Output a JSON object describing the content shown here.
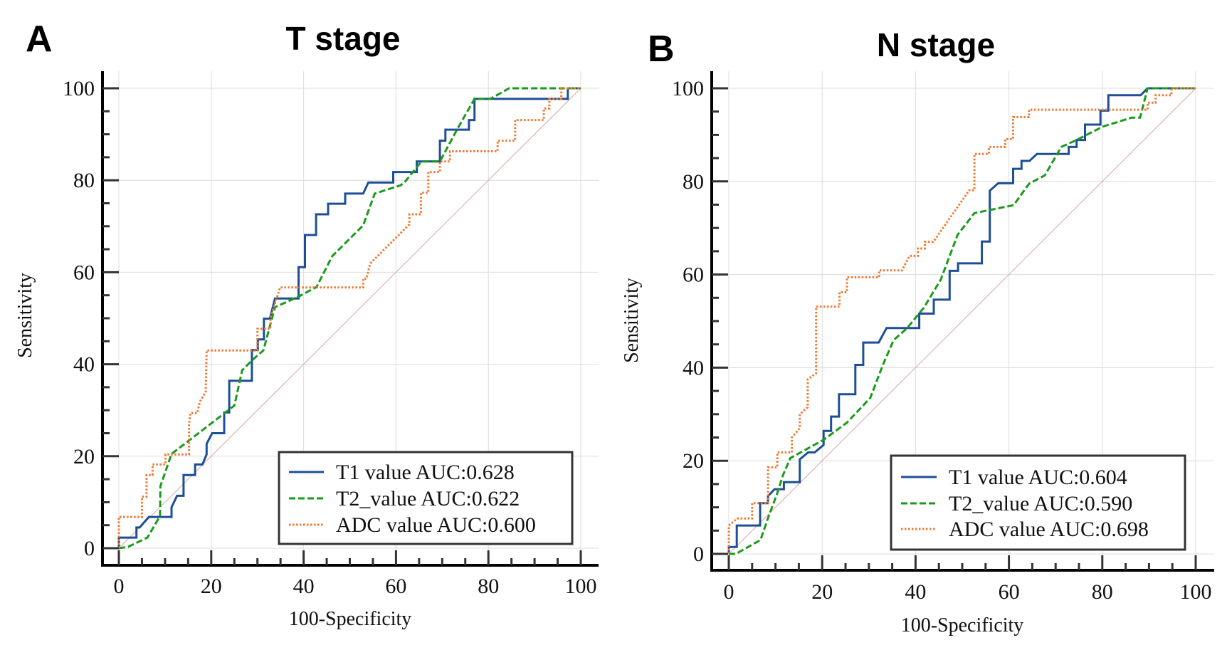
{
  "chart_data": [
    {
      "type": "line",
      "panel_letter": "A",
      "title": "T stage",
      "xlabel": "100-Specificity",
      "ylabel": "Sensitivity",
      "xlim": [
        0,
        100
      ],
      "ylim": [
        0,
        100
      ],
      "xticks": [
        0,
        20,
        40,
        60,
        80,
        100
      ],
      "yticks": [
        0,
        20,
        40,
        60,
        80,
        100
      ],
      "grid": true,
      "legend_position": "bottom-right",
      "reference_line": [
        [
          0,
          0
        ],
        [
          100,
          100
        ]
      ],
      "series": [
        {
          "name": "T1 value AUC:0.628",
          "color": "#1d4f96",
          "style": "solid",
          "points": [
            [
              0,
              0
            ],
            [
              0,
              2.3
            ],
            [
              3.8,
              2.3
            ],
            [
              3.8,
              4.5
            ],
            [
              4.5,
              4.5
            ],
            [
              6.5,
              6.8
            ],
            [
              11.4,
              6.8
            ],
            [
              11.4,
              8.9
            ],
            [
              12.6,
              11.4
            ],
            [
              14,
              11.4
            ],
            [
              14,
              15.9
            ],
            [
              16.5,
              15.9
            ],
            [
              16.5,
              18.2
            ],
            [
              18.1,
              18.2
            ],
            [
              19,
              20.4
            ],
            [
              19,
              22.7
            ],
            [
              20.2,
              25
            ],
            [
              22.8,
              25
            ],
            [
              22.8,
              29.5
            ],
            [
              23.9,
              29.5
            ],
            [
              23.9,
              36.4
            ],
            [
              28.8,
              36.4
            ],
            [
              28.8,
              43.1
            ],
            [
              30.1,
              43.1
            ],
            [
              30.1,
              45.4
            ],
            [
              31.4,
              45.4
            ],
            [
              31.4,
              49.9
            ],
            [
              32.7,
              49.9
            ],
            [
              33.8,
              54.3
            ],
            [
              38.9,
              54.3
            ],
            [
              38.9,
              61.1
            ],
            [
              40.3,
              61.1
            ],
            [
              40.3,
              68.1
            ],
            [
              42.7,
              68.1
            ],
            [
              42.7,
              72.6
            ],
            [
              45.3,
              72.6
            ],
            [
              45.3,
              74.9
            ],
            [
              49,
              74.9
            ],
            [
              49,
              77.1
            ],
            [
              52.9,
              77.1
            ],
            [
              54,
              79.5
            ],
            [
              59.4,
              79.5
            ],
            [
              59.4,
              81.8
            ],
            [
              64.5,
              81.8
            ],
            [
              64.5,
              84.1
            ],
            [
              69.5,
              84.1
            ],
            [
              69.5,
              88.6
            ],
            [
              70.7,
              88.6
            ],
            [
              70.7,
              91
            ],
            [
              75.8,
              91
            ],
            [
              75.8,
              93.1
            ],
            [
              77,
              93.1
            ],
            [
              77,
              97.7
            ],
            [
              97.2,
              97.7
            ],
            [
              97.2,
              100
            ],
            [
              100,
              100
            ]
          ]
        },
        {
          "name": "T2_value AUC:0.622",
          "color": "#1a9a1a",
          "style": "dashed",
          "points": [
            [
              0,
              0
            ],
            [
              2,
              0.3
            ],
            [
              6.2,
              2.3
            ],
            [
              8.9,
              7
            ],
            [
              9,
              13.5
            ],
            [
              11.4,
              20.5
            ],
            [
              25,
              31
            ],
            [
              26.7,
              38.7
            ],
            [
              29,
              41
            ],
            [
              31.3,
              43
            ],
            [
              33.8,
              52.4
            ],
            [
              38.9,
              54.7
            ],
            [
              42.8,
              56.8
            ],
            [
              46.2,
              63.5
            ],
            [
              52.9,
              70.2
            ],
            [
              55.4,
              77.1
            ],
            [
              61,
              78.9
            ],
            [
              61.9,
              79.6
            ],
            [
              65.5,
              84.1
            ],
            [
              69.5,
              84.1
            ],
            [
              73.2,
              91
            ],
            [
              77,
              97.7
            ],
            [
              80.4,
              97.7
            ],
            [
              84.5,
              100
            ],
            [
              100,
              100
            ]
          ]
        },
        {
          "name": "ADC value AUC:0.600",
          "color": "#ee7a33",
          "style": "dotted",
          "points": [
            [
              0,
              0
            ],
            [
              0,
              6.8
            ],
            [
              5,
              6.8
            ],
            [
              5,
              11.2
            ],
            [
              6,
              11.2
            ],
            [
              6,
              15.9
            ],
            [
              7.3,
              15.9
            ],
            [
              7.3,
              18.2
            ],
            [
              10.1,
              18.2
            ],
            [
              10.1,
              20.4
            ],
            [
              15.2,
              20.4
            ],
            [
              15.2,
              27
            ],
            [
              15.5,
              29.4
            ],
            [
              17,
              29.4
            ],
            [
              17.5,
              31.8
            ],
            [
              18.8,
              34
            ],
            [
              19,
              43
            ],
            [
              30,
              43
            ],
            [
              30,
              47.7
            ],
            [
              32.8,
              47.7
            ],
            [
              32.8,
              50
            ],
            [
              34.9,
              56.7
            ],
            [
              52.9,
              56.7
            ],
            [
              52.9,
              58.6
            ],
            [
              53.6,
              58.6
            ],
            [
              54.4,
              61.9
            ],
            [
              62.9,
              70.4
            ],
            [
              62.9,
              72.6
            ],
            [
              65.4,
              72.6
            ],
            [
              65.4,
              77.3
            ],
            [
              67,
              77.3
            ],
            [
              67,
              81.8
            ],
            [
              69.5,
              81.8
            ],
            [
              69.5,
              84.1
            ],
            [
              71.7,
              84.1
            ],
            [
              71.7,
              86.3
            ],
            [
              82,
              86.3
            ],
            [
              82,
              88.6
            ],
            [
              85.8,
              88.6
            ],
            [
              85.8,
              93.1
            ],
            [
              92,
              93.1
            ],
            [
              92,
              95.6
            ],
            [
              93.2,
              95.6
            ],
            [
              93.2,
              97.7
            ],
            [
              95.8,
              97.7
            ],
            [
              95.8,
              100
            ],
            [
              100,
              100
            ]
          ]
        }
      ]
    },
    {
      "type": "line",
      "panel_letter": "B",
      "title": "N stage",
      "xlabel": "100-Specificity",
      "ylabel": "Sensitivity",
      "xlim": [
        0,
        100
      ],
      "ylim": [
        0,
        100
      ],
      "xticks": [
        0,
        20,
        40,
        60,
        80,
        100
      ],
      "yticks": [
        0,
        20,
        40,
        60,
        80,
        100
      ],
      "grid": true,
      "legend_position": "bottom-right",
      "reference_line": [
        [
          0,
          0
        ],
        [
          100,
          100
        ]
      ],
      "series": [
        {
          "name": "T1 value AUC:0.604",
          "color": "#1d4f96",
          "style": "solid",
          "points": [
            [
              0,
              0
            ],
            [
              0,
              1.5
            ],
            [
              1.7,
              1.5
            ],
            [
              1.7,
              6.1
            ],
            [
              6.7,
              6.1
            ],
            [
              6.7,
              10.9
            ],
            [
              8.4,
              10.9
            ],
            [
              8.4,
              12.4
            ],
            [
              9.8,
              13.9
            ],
            [
              11.8,
              13.9
            ],
            [
              11.8,
              15.4
            ],
            [
              15.2,
              15.4
            ],
            [
              15.2,
              20.3
            ],
            [
              17,
              21.8
            ],
            [
              18.4,
              21.8
            ],
            [
              20.3,
              23.4
            ],
            [
              20.3,
              26.4
            ],
            [
              21.9,
              26.4
            ],
            [
              21.9,
              29.5
            ],
            [
              23.6,
              29.5
            ],
            [
              23.6,
              34.3
            ],
            [
              27.1,
              34.3
            ],
            [
              27.1,
              40.6
            ],
            [
              28.8,
              40.6
            ],
            [
              28.8,
              45.4
            ],
            [
              32.1,
              45.4
            ],
            [
              33.8,
              48.5
            ],
            [
              40.8,
              48.5
            ],
            [
              40.8,
              51.6
            ],
            [
              43.9,
              51.6
            ],
            [
              43.9,
              54.6
            ],
            [
              47.3,
              54.6
            ],
            [
              47.3,
              60.8
            ],
            [
              49.1,
              60.8
            ],
            [
              49.1,
              62.4
            ],
            [
              54.2,
              62.4
            ],
            [
              54.2,
              67.1
            ],
            [
              55.9,
              67.1
            ],
            [
              55.9,
              78
            ],
            [
              57.7,
              79.6
            ],
            [
              60.9,
              79.6
            ],
            [
              60.9,
              82.7
            ],
            [
              62.7,
              82.7
            ],
            [
              62.7,
              84.4
            ],
            [
              64.4,
              84.4
            ],
            [
              66,
              85.9
            ],
            [
              72.8,
              85.9
            ],
            [
              72.8,
              87.4
            ],
            [
              74.5,
              87.4
            ],
            [
              74.5,
              88.9
            ],
            [
              76.3,
              88.9
            ],
            [
              76.3,
              92.2
            ],
            [
              79.6,
              92.2
            ],
            [
              79.6,
              95.2
            ],
            [
              81.3,
              95.2
            ],
            [
              81.3,
              98.5
            ],
            [
              88.2,
              98.5
            ],
            [
              89.7,
              100
            ],
            [
              100,
              100
            ]
          ]
        },
        {
          "name": "T2_value AUC:0.590",
          "color": "#1a9a1a",
          "style": "dashed",
          "points": [
            [
              0,
              0
            ],
            [
              1.5,
              0
            ],
            [
              6.8,
              3
            ],
            [
              8.5,
              8
            ],
            [
              10.3,
              12.8
            ],
            [
              11.6,
              16.9
            ],
            [
              13.2,
              20.6
            ],
            [
              20.3,
              24.5
            ],
            [
              25.3,
              28.2
            ],
            [
              30.3,
              33.5
            ],
            [
              33,
              40.6
            ],
            [
              35.3,
              45.9
            ],
            [
              38.2,
              48.5
            ],
            [
              41.8,
              52.9
            ],
            [
              45.4,
              58.9
            ],
            [
              49,
              68.5
            ],
            [
              52.6,
              73.2
            ],
            [
              61,
              74.9
            ],
            [
              64.3,
              79.5
            ],
            [
              67.7,
              81.3
            ],
            [
              71.2,
              87.4
            ],
            [
              74.5,
              88.9
            ],
            [
              80.2,
              91.8
            ],
            [
              86.3,
              93.7
            ],
            [
              88.1,
              93.7
            ],
            [
              89.7,
              100
            ],
            [
              100,
              100
            ]
          ]
        },
        {
          "name": "ADC value AUC:0.698",
          "color": "#ee7a33",
          "style": "dotted",
          "points": [
            [
              0,
              0
            ],
            [
              0,
              6.1
            ],
            [
              1.8,
              7.6
            ],
            [
              5,
              7.6
            ],
            [
              5,
              10.9
            ],
            [
              8.4,
              10.9
            ],
            [
              8.4,
              18.6
            ],
            [
              10.4,
              18.6
            ],
            [
              10.4,
              21.8
            ],
            [
              13.5,
              21.8
            ],
            [
              13.5,
              25
            ],
            [
              15.2,
              27
            ],
            [
              15.2,
              30
            ],
            [
              16.9,
              31.5
            ],
            [
              16.9,
              37.5
            ],
            [
              18.7,
              38.8
            ],
            [
              18.7,
              53.1
            ],
            [
              23.7,
              53.1
            ],
            [
              23.7,
              56.2
            ],
            [
              25.3,
              56.2
            ],
            [
              25.3,
              59.4
            ],
            [
              32.2,
              59.4
            ],
            [
              32.2,
              60.9
            ],
            [
              37.1,
              60.9
            ],
            [
              38.7,
              64
            ],
            [
              40.5,
              64
            ],
            [
              40.5,
              65.6
            ],
            [
              42,
              65.6
            ],
            [
              42,
              67
            ],
            [
              43.8,
              67
            ],
            [
              51.5,
              78.1
            ],
            [
              52.6,
              78.1
            ],
            [
              52.6,
              85.9
            ],
            [
              55.7,
              85.9
            ],
            [
              55.7,
              87.4
            ],
            [
              59.2,
              87.4
            ],
            [
              59.2,
              89.1
            ],
            [
              60.9,
              89.1
            ],
            [
              60.9,
              93.8
            ],
            [
              64.3,
              93.8
            ],
            [
              64.3,
              95.4
            ],
            [
              89.7,
              95.4
            ],
            [
              89.7,
              96.9
            ],
            [
              91.4,
              96.9
            ],
            [
              91.4,
              98.5
            ],
            [
              94.8,
              98.5
            ],
            [
              94.8,
              100
            ],
            [
              100,
              100
            ]
          ]
        }
      ]
    }
  ]
}
